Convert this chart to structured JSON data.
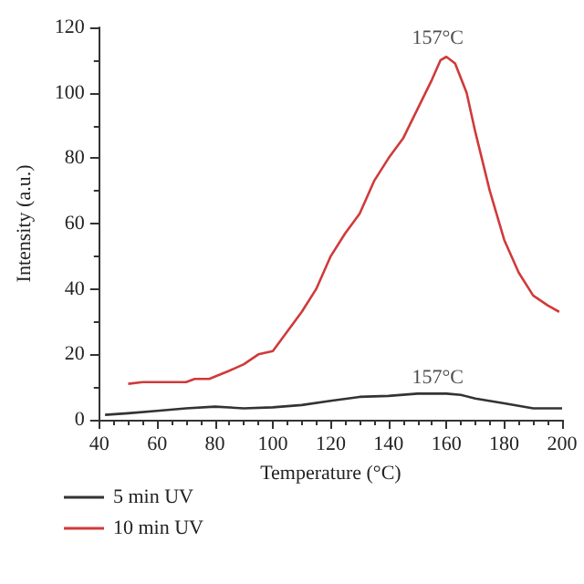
{
  "chart_data": {
    "type": "line",
    "xlabel": "Temperature (°C)",
    "ylabel": "Intensity (a.u.)",
    "xlim": [
      40,
      200
    ],
    "xticks": [
      40,
      60,
      80,
      100,
      120,
      140,
      160,
      180,
      200
    ],
    "ylim": [
      0,
      120
    ],
    "yticks": [
      0,
      20,
      40,
      60,
      80,
      100,
      120
    ],
    "grid": false,
    "legend": "bottom left",
    "marker": "none",
    "line_style": "solid",
    "annotations": [
      {
        "text": "157°C",
        "x": 157,
        "y": 112
      },
      {
        "text": "157°C",
        "x": 157,
        "y": 8
      }
    ],
    "series": [
      {
        "name": "5 min UV",
        "color": "#333333",
        "x": [
          42,
          50,
          60,
          70,
          80,
          90,
          100,
          110,
          120,
          130,
          140,
          150,
          160,
          165,
          170,
          180,
          190,
          200
        ],
        "values": [
          1.5,
          2,
          2.7,
          3.5,
          4,
          3.5,
          3.8,
          4.5,
          5.8,
          7,
          7.3,
          8,
          8,
          7.6,
          6.5,
          5,
          3.5,
          3.5
        ]
      },
      {
        "name": "10 min UV",
        "color": "#d03a3a",
        "x": [
          50,
          55,
          60,
          65,
          70,
          73,
          78,
          85,
          90,
          95,
          100,
          105,
          110,
          115,
          120,
          125,
          130,
          135,
          140,
          145,
          150,
          155,
          158,
          160,
          163,
          167,
          170,
          175,
          180,
          185,
          190,
          195,
          199
        ],
        "values": [
          11,
          11.5,
          11.5,
          11.5,
          11.5,
          12.5,
          12.5,
          15,
          17,
          20,
          21,
          27,
          33,
          40,
          50,
          57,
          63,
          73,
          80,
          86,
          95,
          104,
          110,
          111,
          109,
          100,
          88,
          70,
          55,
          45,
          38,
          35,
          33
        ]
      }
    ]
  }
}
